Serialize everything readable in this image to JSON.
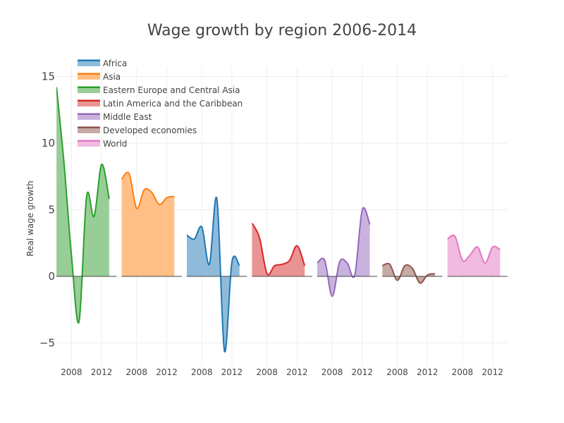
{
  "chart_data": {
    "type": "area",
    "title": "Wage growth by region 2006-2014",
    "ylabel": "Real wage growth",
    "xlabel": "",
    "ylim": [
      -6.5,
      15.5
    ],
    "yticks": [
      -5,
      0,
      5,
      10,
      15
    ],
    "ytick_labels": [
      "−5",
      "0",
      "5",
      "10",
      "15"
    ],
    "xlim": [
      2006,
      2014
    ],
    "xticks": [
      2008,
      2012
    ],
    "xtick_labels": [
      "2008",
      "2012"
    ],
    "legend_position": "top-left",
    "grid": true,
    "x": [
      2006,
      2007,
      2008,
      2009,
      2010,
      2011,
      2012,
      2013,
      2014
    ],
    "series": [
      {
        "name": "Eastern Europe and Central Asia",
        "color": "#2ca02c",
        "fill": "#98cd98",
        "values": [
          14.2,
          8.5,
          1.5,
          -3.4,
          6.0,
          4.5,
          8.4,
          5.8,
          null
        ]
      },
      {
        "name": "Asia",
        "color": "#ff7f0e",
        "fill": "#ffbf86",
        "values": [
          7.3,
          7.7,
          5.1,
          6.5,
          6.3,
          5.4,
          5.9,
          6.0,
          null
        ]
      },
      {
        "name": "Africa",
        "color": "#1f77b4",
        "fill": "#8fbbda",
        "values": [
          3.1,
          2.8,
          3.7,
          0.9,
          5.8,
          -5.6,
          1.1,
          0.8,
          null
        ]
      },
      {
        "name": "Latin America and the Caribbean",
        "color": "#d62728",
        "fill": "#ea9393",
        "values": [
          4.0,
          2.9,
          0.2,
          0.8,
          0.9,
          1.2,
          2.3,
          0.8,
          null
        ]
      },
      {
        "name": "Middle East",
        "color": "#9467bd",
        "fill": "#c9b3de",
        "values": [
          1.0,
          1.2,
          -1.5,
          1.1,
          1.0,
          0.1,
          5.0,
          3.9,
          null
        ]
      },
      {
        "name": "Developed economies",
        "color": "#8c564b",
        "fill": "#c5aaa5",
        "values": [
          0.8,
          0.9,
          -0.3,
          0.8,
          0.6,
          -0.5,
          0.1,
          0.2,
          null
        ]
      },
      {
        "name": "World",
        "color": "#e377c2",
        "fill": "#f1bbe0",
        "values": [
          2.8,
          3.0,
          1.2,
          1.6,
          2.2,
          1.0,
          2.2,
          2.0,
          null
        ]
      }
    ],
    "legend_order": [
      "Africa",
      "Asia",
      "Eastern Europe and Central Asia",
      "Latin America and the Caribbean",
      "Middle East",
      "Developed economies",
      "World"
    ]
  }
}
